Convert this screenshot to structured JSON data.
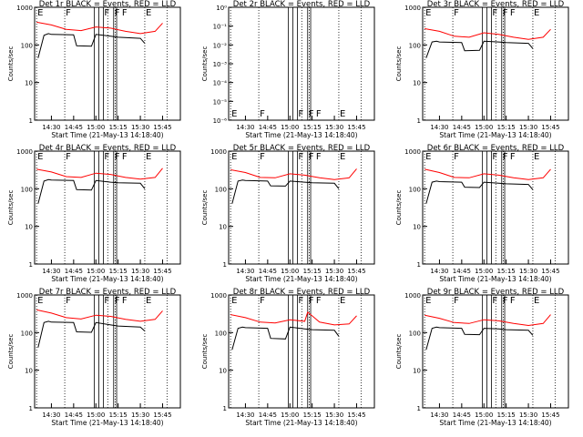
{
  "colors": {
    "background": "#ffffff",
    "axis": "#000000",
    "events_series": "#000000",
    "lld_series": "#ff0000"
  },
  "xlabel": "Start Time (21-May-13 14:18:40)",
  "ylabel": "Counts/sec",
  "x_ticks": [
    "14:30",
    "14:45",
    "15:00",
    "15:15",
    "15:30",
    "15:45"
  ],
  "marker_lines": {
    "line_style_dotted_x": [
      "14:20",
      "14:39",
      "15:08",
      "15:13",
      "15:33",
      "15:48"
    ],
    "line_style_solid_x": [
      "14:59",
      "15:02",
      "15:05",
      "15:12",
      "15:14"
    ]
  },
  "chart_data": [
    {
      "type": "line",
      "title": "Det 1r BLACK = Events, RED = LLD",
      "ylim": [
        1,
        1000
      ],
      "yscale": "log",
      "y_tick_labels": [
        "1",
        "10",
        "100",
        "1000"
      ],
      "flag_labels": [
        "E",
        "F",
        "F",
        "F",
        "F",
        "E"
      ],
      "series": [
        {
          "name": "BLACK = Events",
          "color": "#000000",
          "x": [
            "14:21",
            "14:25",
            "14:28",
            "14:30",
            "14:45",
            "14:47",
            "14:57",
            "15:00",
            "15:10",
            "15:15",
            "15:30",
            "15:33"
          ],
          "values": [
            45,
            180,
            200,
            190,
            185,
            95,
            92,
            190,
            170,
            160,
            150,
            110
          ]
        },
        {
          "name": "RED = LLD",
          "color": "#ff0000",
          "x": [
            "14:20",
            "14:30",
            "14:40",
            "14:50",
            "15:00",
            "15:10",
            "15:20",
            "15:30",
            "15:40",
            "15:45"
          ],
          "values": [
            400,
            340,
            260,
            240,
            300,
            280,
            230,
            200,
            230,
            380
          ]
        }
      ]
    },
    {
      "type": "line",
      "title": "Det 2r BLACK = Events, RED = LLD",
      "ylim": [
        1e-06,
        1
      ],
      "yscale": "log",
      "y_tick_labels": [
        "10⁻⁶",
        "10⁻⁵",
        "10⁻⁴",
        "10⁻³",
        "10⁻²",
        "10⁻¹",
        "10⁰"
      ],
      "flag_labels": [
        "E",
        "F",
        "F",
        "F",
        "F",
        "E"
      ],
      "series": []
    },
    {
      "type": "line",
      "title": "Det 3r BLACK = Events, RED = LLD",
      "ylim": [
        1,
        1000
      ],
      "yscale": "log",
      "y_tick_labels": [
        "1",
        "10",
        "100",
        "1000"
      ],
      "flag_labels": [
        "E",
        "F",
        "F",
        "F",
        "F",
        "E"
      ],
      "series": [
        {
          "name": "BLACK = Events",
          "color": "#000000",
          "x": [
            "14:21",
            "14:25",
            "14:28",
            "14:30",
            "14:45",
            "14:47",
            "14:57",
            "15:00",
            "15:10",
            "15:15",
            "15:30",
            "15:33"
          ],
          "values": [
            45,
            120,
            125,
            120,
            115,
            70,
            72,
            125,
            120,
            115,
            110,
            80
          ]
        },
        {
          "name": "RED = LLD",
          "color": "#ff0000",
          "x": [
            "14:20",
            "14:30",
            "14:40",
            "14:50",
            "15:00",
            "15:10",
            "15:20",
            "15:30",
            "15:40",
            "15:45"
          ],
          "values": [
            270,
            230,
            170,
            160,
            210,
            190,
            160,
            140,
            160,
            260
          ]
        }
      ]
    },
    {
      "type": "line",
      "title": "Det 4r BLACK = Events, RED = LLD",
      "ylim": [
        1,
        1000
      ],
      "yscale": "log",
      "y_tick_labels": [
        "1",
        "10",
        "100",
        "1000"
      ],
      "flag_labels": [
        "E",
        "F",
        "F",
        "F",
        "F",
        "E"
      ],
      "series": [
        {
          "name": "BLACK = Events",
          "color": "#000000",
          "x": [
            "14:21",
            "14:25",
            "14:28",
            "14:30",
            "14:45",
            "14:47",
            "14:57",
            "15:00",
            "15:10",
            "15:15",
            "15:30",
            "15:33"
          ],
          "values": [
            40,
            160,
            175,
            170,
            165,
            95,
            92,
            165,
            150,
            145,
            140,
            100
          ]
        },
        {
          "name": "RED = LLD",
          "color": "#ff0000",
          "x": [
            "14:20",
            "14:30",
            "14:40",
            "14:50",
            "15:00",
            "15:10",
            "15:20",
            "15:30",
            "15:40",
            "15:45"
          ],
          "values": [
            330,
            280,
            210,
            200,
            260,
            240,
            200,
            180,
            200,
            350
          ]
        }
      ]
    },
    {
      "type": "line",
      "title": "Det 5r BLACK = Events, RED = LLD",
      "ylim": [
        1,
        1000
      ],
      "yscale": "log",
      "y_tick_labels": [
        "1",
        "10",
        "100",
        "1000"
      ],
      "flag_labels": [
        "E",
        "F",
        "F",
        "F",
        "F",
        "E"
      ],
      "series": [
        {
          "name": "BLACK = Events",
          "color": "#000000",
          "x": [
            "14:21",
            "14:25",
            "14:28",
            "14:30",
            "14:45",
            "14:47",
            "14:57",
            "15:00",
            "15:10",
            "15:15",
            "15:30",
            "15:33"
          ],
          "values": [
            40,
            160,
            170,
            165,
            160,
            120,
            118,
            160,
            150,
            145,
            140,
            100
          ]
        },
        {
          "name": "RED = LLD",
          "color": "#ff0000",
          "x": [
            "14:20",
            "14:30",
            "14:40",
            "14:50",
            "15:00",
            "15:10",
            "15:20",
            "15:30",
            "15:40",
            "15:45"
          ],
          "values": [
            320,
            270,
            200,
            195,
            250,
            230,
            195,
            175,
            195,
            340
          ]
        }
      ]
    },
    {
      "type": "line",
      "title": "Det 6r BLACK = Events, RED = LLD",
      "ylim": [
        1,
        1000
      ],
      "yscale": "log",
      "y_tick_labels": [
        "1",
        "10",
        "100",
        "1000"
      ],
      "flag_labels": [
        "E",
        "F",
        "F",
        "F",
        "F",
        "E"
      ],
      "series": [
        {
          "name": "BLACK = Events",
          "color": "#000000",
          "x": [
            "14:21",
            "14:25",
            "14:28",
            "14:30",
            "14:45",
            "14:47",
            "14:57",
            "15:00",
            "15:10",
            "15:15",
            "15:30",
            "15:33"
          ],
          "values": [
            40,
            150,
            160,
            155,
            150,
            110,
            108,
            150,
            140,
            135,
            130,
            95
          ]
        },
        {
          "name": "RED = LLD",
          "color": "#ff0000",
          "x": [
            "14:20",
            "14:30",
            "14:40",
            "14:50",
            "15:00",
            "15:10",
            "15:20",
            "15:30",
            "15:40",
            "15:45"
          ],
          "values": [
            330,
            270,
            200,
            195,
            250,
            230,
            195,
            175,
            195,
            330
          ]
        }
      ]
    },
    {
      "type": "line",
      "title": "Det 7r BLACK = Events, RED = LLD",
      "ylim": [
        1,
        1000
      ],
      "yscale": "log",
      "y_tick_labels": [
        "1",
        "10",
        "100",
        "1000"
      ],
      "flag_labels": [
        "E",
        "F",
        "F",
        "F",
        "F",
        "E"
      ],
      "series": [
        {
          "name": "BLACK = Events",
          "color": "#000000",
          "x": [
            "14:21",
            "14:25",
            "14:28",
            "14:30",
            "14:45",
            "14:47",
            "14:57",
            "15:00",
            "15:10",
            "15:15",
            "15:30",
            "15:33"
          ],
          "values": [
            40,
            185,
            200,
            190,
            185,
            105,
            102,
            185,
            160,
            150,
            140,
            110
          ]
        },
        {
          "name": "RED = LLD",
          "color": "#ff0000",
          "x": [
            "14:20",
            "14:30",
            "14:40",
            "14:50",
            "15:00",
            "15:10",
            "15:20",
            "15:30",
            "15:40",
            "15:45"
          ],
          "values": [
            400,
            330,
            250,
            230,
            290,
            270,
            225,
            200,
            225,
            380
          ]
        }
      ]
    },
    {
      "type": "line",
      "title": "Det 8r BLACK = Events, RED = LLD",
      "ylim": [
        1,
        1000
      ],
      "yscale": "log",
      "y_tick_labels": [
        "1",
        "10",
        "100",
        "1000"
      ],
      "flag_labels": [
        "E",
        "F",
        "F",
        "F",
        "F",
        "E"
      ],
      "series": [
        {
          "name": "BLACK = Events",
          "color": "#000000",
          "x": [
            "14:21",
            "14:25",
            "14:28",
            "14:30",
            "14:45",
            "14:47",
            "14:57",
            "15:00",
            "15:10",
            "15:15",
            "15:30",
            "15:33"
          ],
          "values": [
            35,
            130,
            140,
            135,
            130,
            70,
            68,
            140,
            125,
            120,
            115,
            80
          ]
        },
        {
          "name": "RED = LLD",
          "color": "#ff0000",
          "x": [
            "14:20",
            "14:30",
            "14:40",
            "14:50",
            "15:00",
            "15:10",
            "15:12",
            "15:20",
            "15:30",
            "15:40",
            "15:45"
          ],
          "values": [
            300,
            250,
            190,
            180,
            220,
            200,
            350,
            190,
            160,
            170,
            280
          ]
        }
      ]
    },
    {
      "type": "line",
      "title": "Det 9r BLACK = Events, RED = LLD",
      "ylim": [
        1,
        1000
      ],
      "yscale": "log",
      "y_tick_labels": [
        "1",
        "10",
        "100",
        "1000"
      ],
      "flag_labels": [
        "E",
        "F",
        "F",
        "F",
        "F",
        "E"
      ],
      "series": [
        {
          "name": "BLACK = Events",
          "color": "#000000",
          "x": [
            "14:21",
            "14:25",
            "14:28",
            "14:30",
            "14:45",
            "14:47",
            "14:57",
            "15:00",
            "15:10",
            "15:15",
            "15:30",
            "15:33"
          ],
          "values": [
            35,
            130,
            140,
            135,
            130,
            90,
            88,
            130,
            125,
            120,
            115,
            85
          ]
        },
        {
          "name": "RED = LLD",
          "color": "#ff0000",
          "x": [
            "14:20",
            "14:30",
            "14:40",
            "14:50",
            "15:00",
            "15:10",
            "15:20",
            "15:30",
            "15:40",
            "15:45"
          ],
          "values": [
            290,
            240,
            185,
            175,
            220,
            205,
            175,
            155,
            175,
            300
          ]
        }
      ]
    }
  ]
}
